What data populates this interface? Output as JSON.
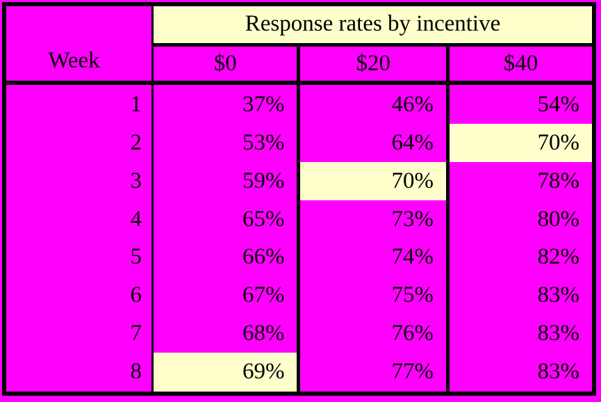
{
  "colors": {
    "magenta": "#ff00ff",
    "cream": "#ffffcc",
    "line": "#000000",
    "text": "#000000"
  },
  "table": {
    "group_header": "Response rates by incentive",
    "columns": {
      "week": "Week",
      "c0": "$0",
      "c20": "$20",
      "c40": "$40"
    },
    "rows": [
      {
        "week": "1",
        "v0": "37%",
        "v20": "46%",
        "v40": "54%"
      },
      {
        "week": "2",
        "v0": "53%",
        "v20": "64%",
        "v40": "70%"
      },
      {
        "week": "3",
        "v0": "59%",
        "v20": "70%",
        "v40": "78%"
      },
      {
        "week": "4",
        "v0": "65%",
        "v20": "73%",
        "v40": "80%"
      },
      {
        "week": "5",
        "v0": "66%",
        "v20": "74%",
        "v40": "82%"
      },
      {
        "week": "6",
        "v0": "67%",
        "v20": "75%",
        "v40": "83%"
      },
      {
        "week": "7",
        "v0": "68%",
        "v20": "76%",
        "v40": "83%"
      },
      {
        "week": "8",
        "v0": "69%",
        "v20": "77%",
        "v40": "83%"
      }
    ]
  },
  "chart_data": {
    "type": "table",
    "title": "Response rates by incentive",
    "xlabel": "Week",
    "categories": [
      "1",
      "2",
      "3",
      "4",
      "5",
      "6",
      "7",
      "8"
    ],
    "series": [
      {
        "name": "$0",
        "values": [
          37,
          53,
          59,
          65,
          66,
          67,
          68,
          69
        ]
      },
      {
        "name": "$20",
        "values": [
          46,
          64,
          70,
          73,
          74,
          75,
          76,
          77
        ]
      },
      {
        "name": "$40",
        "values": [
          54,
          70,
          78,
          80,
          82,
          83,
          83,
          83
        ]
      }
    ],
    "highlighted_cells": [
      {
        "week": 2,
        "column": "$40",
        "value": 70
      },
      {
        "week": 3,
        "column": "$20",
        "value": 70
      },
      {
        "week": 8,
        "column": "$0",
        "value": 69
      }
    ],
    "highlight_color": "#ffffcc",
    "cell_color": "#ff00ff"
  }
}
